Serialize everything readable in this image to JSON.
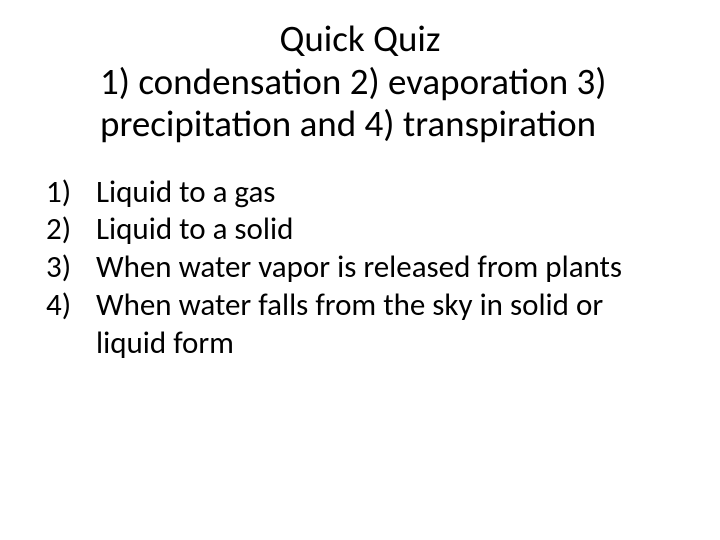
{
  "background_color": "#ffffff",
  "text_color": "#000000",
  "font_family": "Calibri",
  "title": {
    "line1": "Quick Quiz",
    "line2": "1) condensation 2) evaporation 3)",
    "line3": "precipitation  and 4) transpiration",
    "fontsize": 37
  },
  "list": {
    "fontsize": 31,
    "items": [
      {
        "num": "1)",
        "text": "Liquid to a gas"
      },
      {
        "num": "2)",
        "text": "Liquid to a solid"
      },
      {
        "num": "3)",
        "text": "When water vapor is released from plants"
      },
      {
        "num": "4)",
        "text": "When water falls from the sky in solid or liquid form"
      }
    ]
  }
}
